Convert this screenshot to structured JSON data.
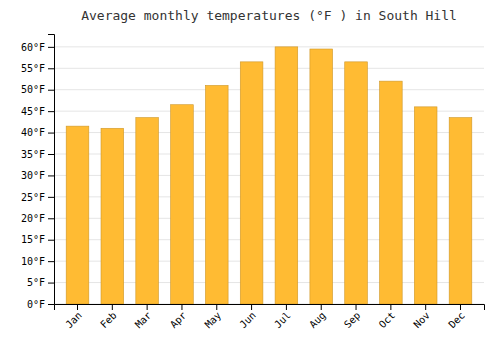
{
  "chart_data": {
    "type": "bar",
    "title": "Average monthly temperatures (°F ) in South Hill",
    "categories": [
      "Jan",
      "Feb",
      "Mar",
      "Apr",
      "May",
      "Jun",
      "Jul",
      "Aug",
      "Sep",
      "Oct",
      "Nov",
      "Dec"
    ],
    "values": [
      41.5,
      41.0,
      43.5,
      46.5,
      51.0,
      56.5,
      60.0,
      59.5,
      56.5,
      52.0,
      46.0,
      43.5
    ],
    "color": "#FFBB33",
    "ylim": [
      0,
      63
    ],
    "yticks": [
      {
        "value": 0,
        "label": "0°F"
      },
      {
        "value": 5,
        "label": "5°F"
      },
      {
        "value": 10,
        "label": "10°F"
      },
      {
        "value": 15,
        "label": "15°F"
      },
      {
        "value": 20,
        "label": "20°F"
      },
      {
        "value": 25,
        "label": "25°F"
      },
      {
        "value": 30,
        "label": "30°F"
      },
      {
        "value": 35,
        "label": "35°F"
      },
      {
        "value": 40,
        "label": "40°F"
      },
      {
        "value": 45,
        "label": "45°F"
      },
      {
        "value": 50,
        "label": "50°F"
      },
      {
        "value": 55,
        "label": "55°F"
      },
      {
        "value": 60,
        "label": "60°F"
      }
    ],
    "grid": true
  }
}
